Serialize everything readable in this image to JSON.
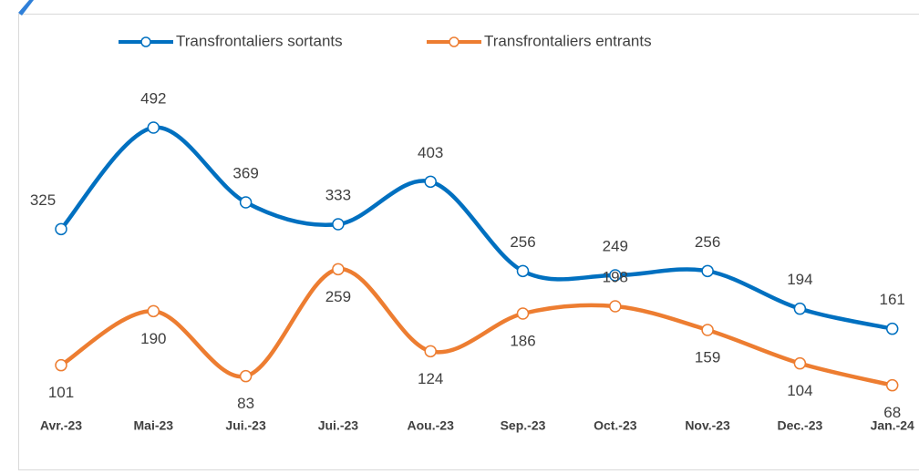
{
  "chart_data": {
    "type": "line",
    "categories": [
      "Avr.-23",
      "Mai-23",
      "Jui.-23",
      "Jui.-23",
      "Aou.-23",
      "Sep.-23",
      "Oct.-23",
      "Nov.-23",
      "Dec.-23",
      "Jan.-24"
    ],
    "series": [
      {
        "name": "Transfrontaliers sortants",
        "color": "#0070c0",
        "values": [
          325,
          492,
          369,
          333,
          403,
          256,
          249,
          256,
          194,
          161
        ]
      },
      {
        "name": "Transfrontaliers entrants",
        "color": "#ed7d31",
        "values": [
          101,
          190,
          83,
          259,
          124,
          186,
          198,
          159,
          104,
          68
        ]
      }
    ],
    "ylim": [
      0,
      600
    ],
    "legend": "top",
    "smooth": true
  }
}
